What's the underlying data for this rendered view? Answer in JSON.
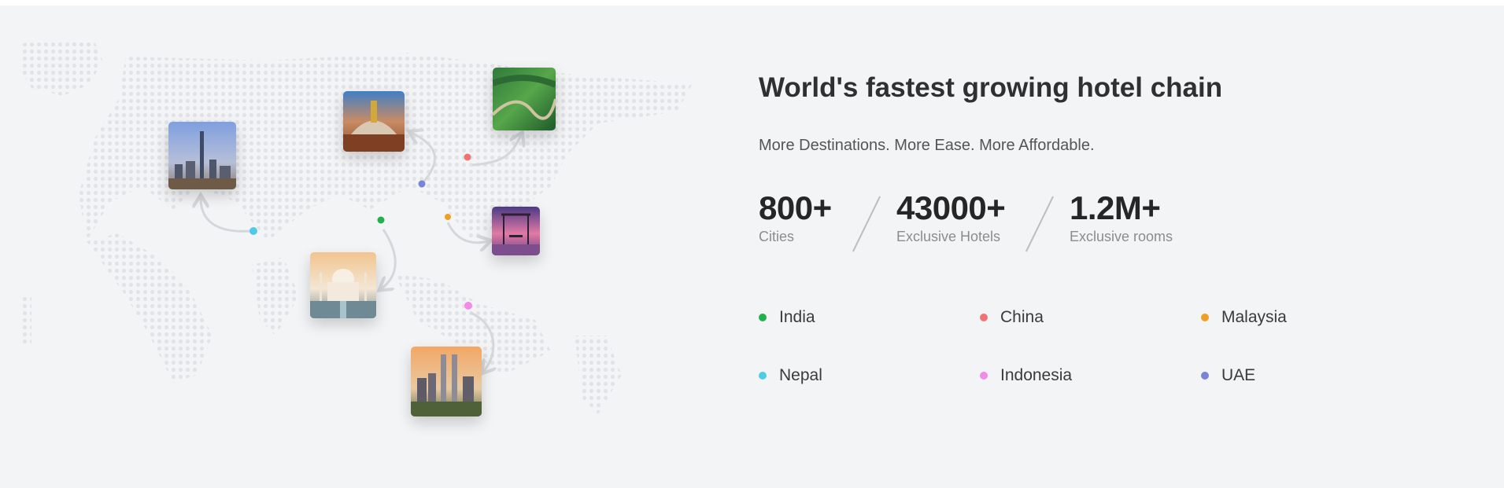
{
  "section": {
    "title": "World's fastest growing hotel chain",
    "subtitle": "More Destinations. More Ease. More Affordable."
  },
  "stats": [
    {
      "value": "800+",
      "label": "Cities"
    },
    {
      "value": "43000+",
      "label": "Exclusive Hotels"
    },
    {
      "value": "1.2M+",
      "label": "Exclusive rooms"
    }
  ],
  "countries": [
    {
      "name": "India",
      "color": "#22b14c"
    },
    {
      "name": "China",
      "color": "#f07373"
    },
    {
      "name": "Malaysia",
      "color": "#f0a020"
    },
    {
      "name": "Nepal",
      "color": "#4fcbe8"
    },
    {
      "name": "Indonesia",
      "color": "#f28be8"
    },
    {
      "name": "UAE",
      "color": "#7b83d8"
    }
  ],
  "map": {
    "photos": [
      "dubai-photo",
      "nepal-stupa-photo",
      "great-wall-photo",
      "bali-swing-photo",
      "taj-mahal-photo",
      "petronas-towers-photo"
    ],
    "dot_color": "#e2e4e8"
  }
}
